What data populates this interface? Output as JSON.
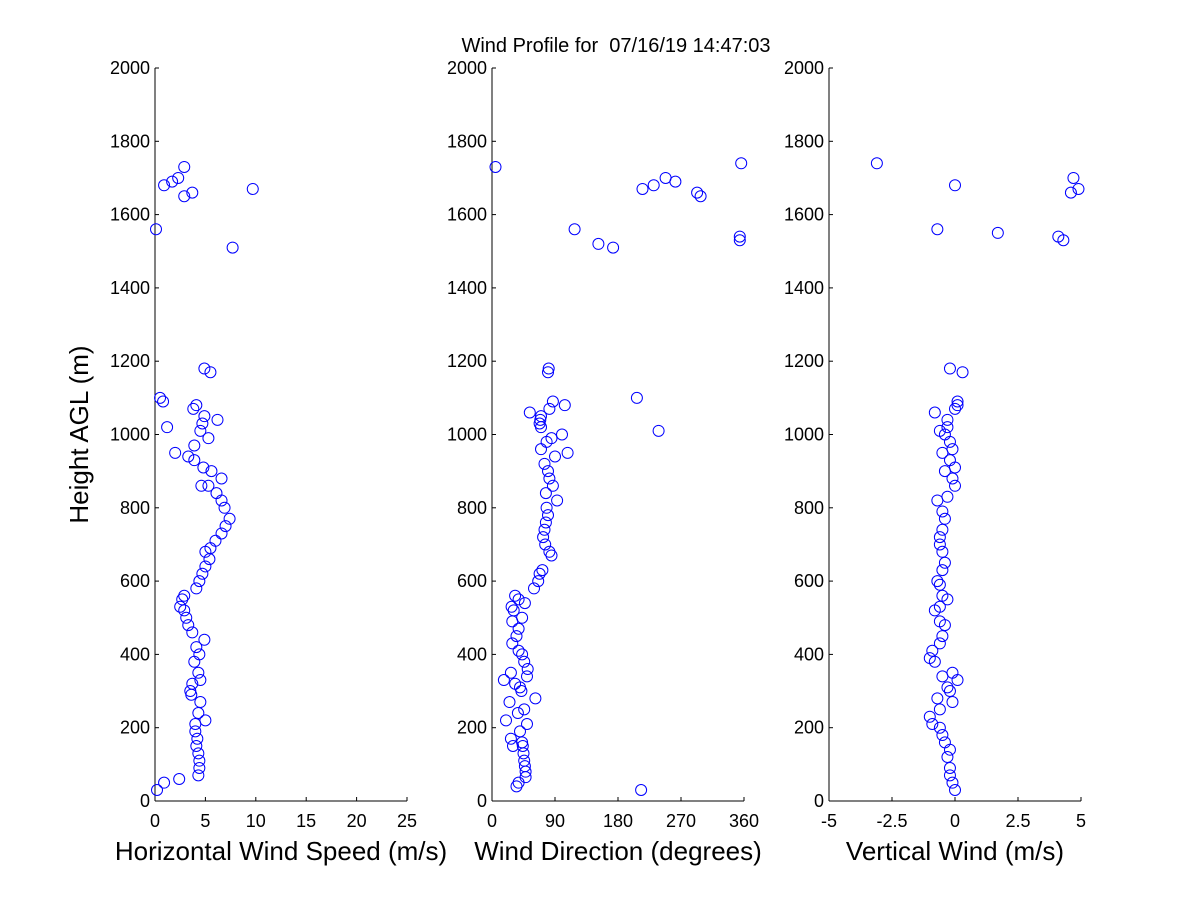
{
  "title": "Wind Profile for  07/16/19 14:47:03",
  "ylabel": "Height AGL (m)",
  "marker_color": "#0000ff",
  "axis_color": "#000000",
  "chart_data": [
    {
      "type": "scatter",
      "xlabel": "Horizontal Wind Speed (m/s)",
      "ylabel": "Height AGL (m)",
      "xlim": [
        0,
        25
      ],
      "ylim": [
        0,
        2000
      ],
      "xticks": [
        "0",
        "5",
        "10",
        "15",
        "20",
        "25"
      ],
      "xtick_values": [
        0,
        5,
        10,
        15,
        20,
        25
      ],
      "yticks": [
        "0",
        "200",
        "400",
        "600",
        "800",
        "1000",
        "1200",
        "1400",
        "1600",
        "1800",
        "2000"
      ],
      "ytick_values": [
        0,
        200,
        400,
        600,
        800,
        1000,
        1200,
        1400,
        1600,
        1800,
        2000
      ],
      "points": [
        [
          0.2,
          30
        ],
        [
          0.9,
          50
        ],
        [
          2.4,
          60
        ],
        [
          4.3,
          70
        ],
        [
          4.4,
          90
        ],
        [
          4.4,
          110
        ],
        [
          4.3,
          130
        ],
        [
          4.1,
          150
        ],
        [
          4.2,
          170
        ],
        [
          4.0,
          190
        ],
        [
          4.0,
          210
        ],
        [
          5.0,
          220
        ],
        [
          4.3,
          240
        ],
        [
          4.5,
          270
        ],
        [
          3.6,
          290
        ],
        [
          3.5,
          300
        ],
        [
          3.7,
          320
        ],
        [
          4.5,
          330
        ],
        [
          4.3,
          350
        ],
        [
          3.9,
          380
        ],
        [
          4.4,
          400
        ],
        [
          4.1,
          420
        ],
        [
          4.9,
          440
        ],
        [
          3.7,
          460
        ],
        [
          3.3,
          480
        ],
        [
          3.1,
          500
        ],
        [
          2.9,
          520
        ],
        [
          2.5,
          530
        ],
        [
          2.7,
          550
        ],
        [
          2.9,
          560
        ],
        [
          4.1,
          580
        ],
        [
          4.4,
          600
        ],
        [
          4.7,
          620
        ],
        [
          5.0,
          640
        ],
        [
          5.4,
          660
        ],
        [
          5.0,
          680
        ],
        [
          5.5,
          690
        ],
        [
          6.0,
          710
        ],
        [
          6.6,
          730
        ],
        [
          7.0,
          750
        ],
        [
          7.4,
          770
        ],
        [
          6.9,
          800
        ],
        [
          6.6,
          820
        ],
        [
          6.1,
          840
        ],
        [
          4.6,
          860
        ],
        [
          5.3,
          860
        ],
        [
          6.6,
          880
        ],
        [
          5.6,
          900
        ],
        [
          4.8,
          910
        ],
        [
          3.9,
          930
        ],
        [
          3.3,
          940
        ],
        [
          2.0,
          950
        ],
        [
          3.9,
          970
        ],
        [
          5.3,
          990
        ],
        [
          4.5,
          1010
        ],
        [
          1.2,
          1020
        ],
        [
          4.7,
          1030
        ],
        [
          6.2,
          1040
        ],
        [
          4.9,
          1050
        ],
        [
          3.8,
          1070
        ],
        [
          4.1,
          1080
        ],
        [
          0.8,
          1090
        ],
        [
          0.5,
          1100
        ],
        [
          5.5,
          1170
        ],
        [
          4.9,
          1180
        ],
        [
          7.7,
          1510
        ],
        [
          0.1,
          1560
        ],
        [
          2.9,
          1650
        ],
        [
          3.7,
          1660
        ],
        [
          9.7,
          1670
        ],
        [
          0.9,
          1680
        ],
        [
          1.7,
          1690
        ],
        [
          2.3,
          1700
        ],
        [
          2.9,
          1730
        ]
      ]
    },
    {
      "type": "scatter",
      "xlabel": "Wind Direction (degrees)",
      "ylabel": "",
      "xlim": [
        0,
        360
      ],
      "ylim": [
        0,
        2000
      ],
      "xticks": [
        "0",
        "90",
        "180",
        "270",
        "360"
      ],
      "xtick_values": [
        0,
        90,
        180,
        270,
        360
      ],
      "yticks": [
        "0",
        "200",
        "400",
        "600",
        "800",
        "1000",
        "1200",
        "1400",
        "1600",
        "1800",
        "2000"
      ],
      "ytick_values": [
        0,
        200,
        400,
        600,
        800,
        1000,
        1200,
        1400,
        1600,
        1800,
        2000
      ],
      "points": [
        [
          213,
          30
        ],
        [
          35,
          40
        ],
        [
          38,
          50
        ],
        [
          48,
          65
        ],
        [
          48,
          80
        ],
        [
          47,
          95
        ],
        [
          46,
          110
        ],
        [
          45,
          130
        ],
        [
          44,
          150
        ],
        [
          43,
          160
        ],
        [
          30,
          150
        ],
        [
          27,
          170
        ],
        [
          40,
          190
        ],
        [
          50,
          210
        ],
        [
          20,
          220
        ],
        [
          37,
          240
        ],
        [
          46,
          250
        ],
        [
          25,
          270
        ],
        [
          62,
          280
        ],
        [
          42,
          300
        ],
        [
          40,
          310
        ],
        [
          17,
          330
        ],
        [
          33,
          320
        ],
        [
          50,
          340
        ],
        [
          27,
          350
        ],
        [
          51,
          360
        ],
        [
          46,
          380
        ],
        [
          43,
          400
        ],
        [
          38,
          410
        ],
        [
          29,
          430
        ],
        [
          35,
          450
        ],
        [
          38,
          470
        ],
        [
          29,
          490
        ],
        [
          43,
          500
        ],
        [
          31,
          520
        ],
        [
          28,
          530
        ],
        [
          47,
          540
        ],
        [
          38,
          550
        ],
        [
          33,
          560
        ],
        [
          60,
          580
        ],
        [
          66,
          600
        ],
        [
          68,
          620
        ],
        [
          72,
          630
        ],
        [
          85,
          670
        ],
        [
          82,
          680
        ],
        [
          76,
          700
        ],
        [
          73,
          720
        ],
        [
          75,
          740
        ],
        [
          77,
          760
        ],
        [
          80,
          780
        ],
        [
          78,
          800
        ],
        [
          93,
          820
        ],
        [
          77,
          840
        ],
        [
          87,
          860
        ],
        [
          82,
          880
        ],
        [
          80,
          900
        ],
        [
          75,
          920
        ],
        [
          90,
          940
        ],
        [
          108,
          950
        ],
        [
          70,
          960
        ],
        [
          78,
          980
        ],
        [
          85,
          990
        ],
        [
          100,
          1000
        ],
        [
          70,
          1020
        ],
        [
          238,
          1010
        ],
        [
          68,
          1030
        ],
        [
          69,
          1040
        ],
        [
          70,
          1050
        ],
        [
          54,
          1060
        ],
        [
          82,
          1070
        ],
        [
          104,
          1080
        ],
        [
          87,
          1090
        ],
        [
          207,
          1100
        ],
        [
          80,
          1170
        ],
        [
          81,
          1180
        ],
        [
          173,
          1510
        ],
        [
          152,
          1520
        ],
        [
          354,
          1530
        ],
        [
          354,
          1540
        ],
        [
          118,
          1560
        ],
        [
          298,
          1650
        ],
        [
          293,
          1660
        ],
        [
          215,
          1670
        ],
        [
          231,
          1680
        ],
        [
          262,
          1690
        ],
        [
          248,
          1700
        ],
        [
          5,
          1730
        ],
        [
          356,
          1740
        ]
      ]
    },
    {
      "type": "scatter",
      "xlabel": "Vertical Wind (m/s)",
      "ylabel": "",
      "xlim": [
        -5,
        5
      ],
      "ylim": [
        0,
        2000
      ],
      "xticks": [
        "-5",
        "-2.5",
        "0",
        "2.5",
        "5"
      ],
      "xtick_values": [
        -5,
        -2.5,
        0,
        2.5,
        5
      ],
      "yticks": [
        "0",
        "200",
        "400",
        "600",
        "800",
        "1000",
        "1200",
        "1400",
        "1600",
        "1800",
        "2000"
      ],
      "ytick_values": [
        0,
        200,
        400,
        600,
        800,
        1000,
        1200,
        1400,
        1600,
        1800,
        2000
      ],
      "points": [
        [
          0.0,
          30
        ],
        [
          -0.1,
          50
        ],
        [
          -0.2,
          70
        ],
        [
          -0.2,
          90
        ],
        [
          -0.3,
          120
        ],
        [
          -0.2,
          140
        ],
        [
          -0.4,
          160
        ],
        [
          -0.5,
          180
        ],
        [
          -0.6,
          200
        ],
        [
          -0.9,
          210
        ],
        [
          -1.0,
          230
        ],
        [
          -0.6,
          250
        ],
        [
          -0.1,
          270
        ],
        [
          -0.7,
          280
        ],
        [
          -0.2,
          300
        ],
        [
          -0.3,
          310
        ],
        [
          0.1,
          330
        ],
        [
          -0.5,
          340
        ],
        [
          -0.1,
          350
        ],
        [
          -0.8,
          380
        ],
        [
          -1.0,
          390
        ],
        [
          -0.9,
          410
        ],
        [
          -0.6,
          430
        ],
        [
          -0.5,
          450
        ],
        [
          -0.4,
          480
        ],
        [
          -0.6,
          490
        ],
        [
          -0.8,
          520
        ],
        [
          -0.6,
          530
        ],
        [
          -0.3,
          550
        ],
        [
          -0.5,
          560
        ],
        [
          -0.6,
          590
        ],
        [
          -0.7,
          600
        ],
        [
          -0.5,
          630
        ],
        [
          -0.4,
          650
        ],
        [
          -0.5,
          680
        ],
        [
          -0.6,
          700
        ],
        [
          -0.6,
          720
        ],
        [
          -0.5,
          740
        ],
        [
          -0.4,
          770
        ],
        [
          -0.5,
          790
        ],
        [
          -0.7,
          820
        ],
        [
          -0.3,
          830
        ],
        [
          0.0,
          860
        ],
        [
          -0.1,
          880
        ],
        [
          -0.4,
          900
        ],
        [
          0.0,
          910
        ],
        [
          -0.2,
          930
        ],
        [
          -0.5,
          950
        ],
        [
          -0.1,
          960
        ],
        [
          -0.2,
          980
        ],
        [
          -0.4,
          1000
        ],
        [
          -0.6,
          1010
        ],
        [
          -0.3,
          1020
        ],
        [
          -0.3,
          1040
        ],
        [
          -0.8,
          1060
        ],
        [
          0.0,
          1070
        ],
        [
          0.1,
          1080
        ],
        [
          0.1,
          1090
        ],
        [
          -0.2,
          1180
        ],
        [
          0.3,
          1170
        ],
        [
          4.3,
          1530
        ],
        [
          4.1,
          1540
        ],
        [
          1.7,
          1550
        ],
        [
          -0.7,
          1560
        ],
        [
          4.6,
          1660
        ],
        [
          4.9,
          1670
        ],
        [
          0.0,
          1680
        ],
        [
          4.7,
          1700
        ],
        [
          -3.1,
          1740
        ]
      ]
    }
  ]
}
